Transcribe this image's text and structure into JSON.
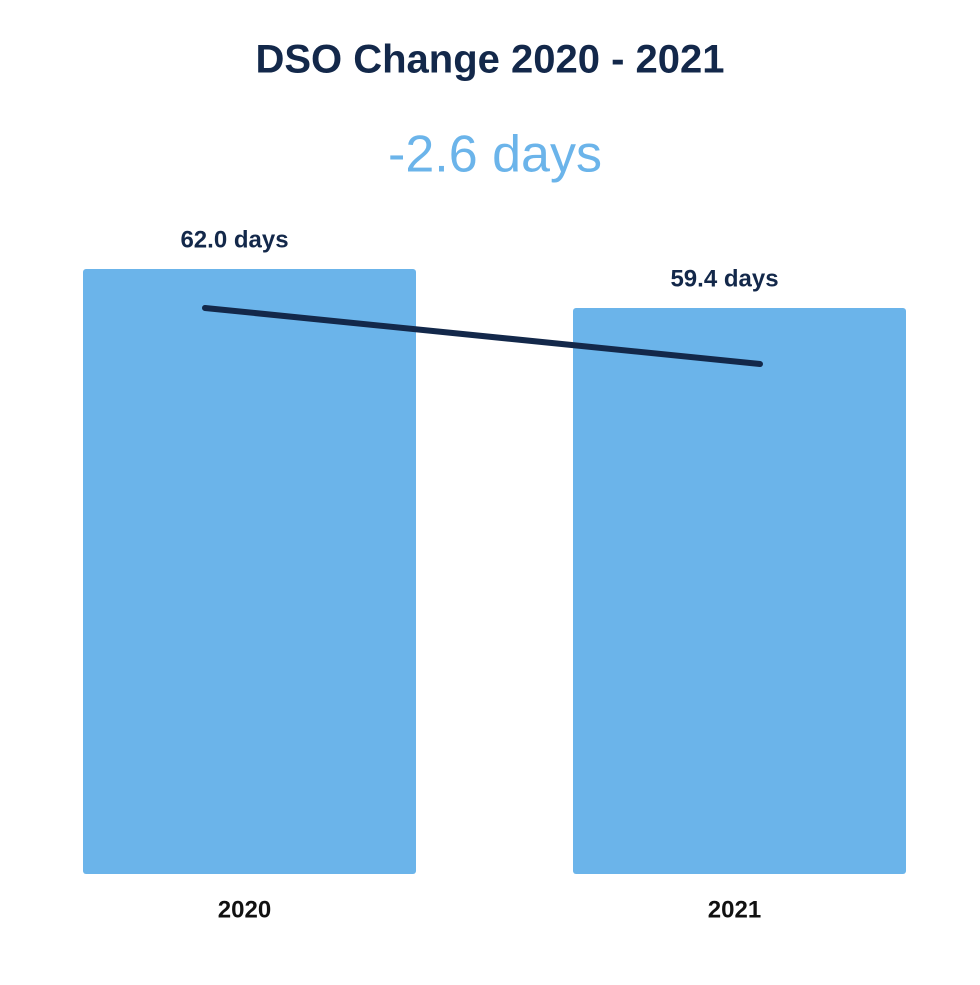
{
  "chart_data": {
    "type": "bar",
    "title": "DSO Change 2020 - 2021",
    "subtitle": "-2.6 days",
    "categories": [
      "2020",
      "2021"
    ],
    "values": [
      62.0,
      59.4
    ],
    "value_labels": [
      "62.0 days",
      "59.4 days"
    ],
    "color": "#6bb4ea",
    "ylim": [
      21.7,
      62.0
    ]
  }
}
